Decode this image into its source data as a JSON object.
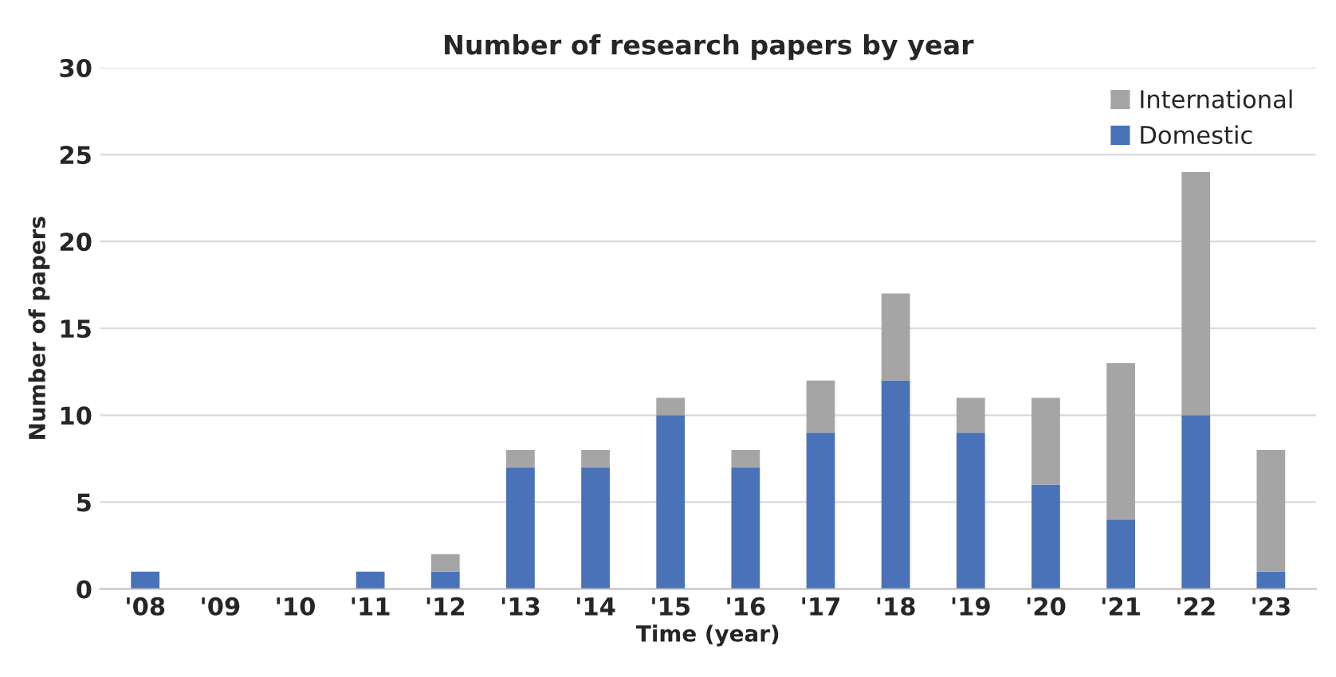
{
  "chart_data": {
    "type": "bar",
    "title": "Number of research papers by year",
    "xlabel": "Time (year)",
    "ylabel": "Number of papers",
    "categories": [
      "'08",
      "'09",
      "'10",
      "'11",
      "'12",
      "'13",
      "'14",
      "'15",
      "'16",
      "'17",
      "'18",
      "'19",
      "'20",
      "'21",
      "'22",
      "'23"
    ],
    "series": [
      {
        "name": "Domestic",
        "color": "#4a72b8",
        "values": [
          1,
          0,
          0,
          1,
          1,
          7,
          7,
          10,
          7,
          9,
          12,
          9,
          6,
          4,
          10,
          1
        ]
      },
      {
        "name": "International",
        "color": "#a5a5a5",
        "values": [
          0,
          0,
          0,
          0,
          1,
          1,
          1,
          1,
          1,
          3,
          5,
          2,
          5,
          9,
          14,
          7
        ]
      }
    ],
    "stacked": true,
    "ylim": [
      0,
      30
    ],
    "yticks": [
      0,
      5,
      10,
      15,
      20,
      25,
      30
    ],
    "grid": "y",
    "legend": "top right"
  }
}
